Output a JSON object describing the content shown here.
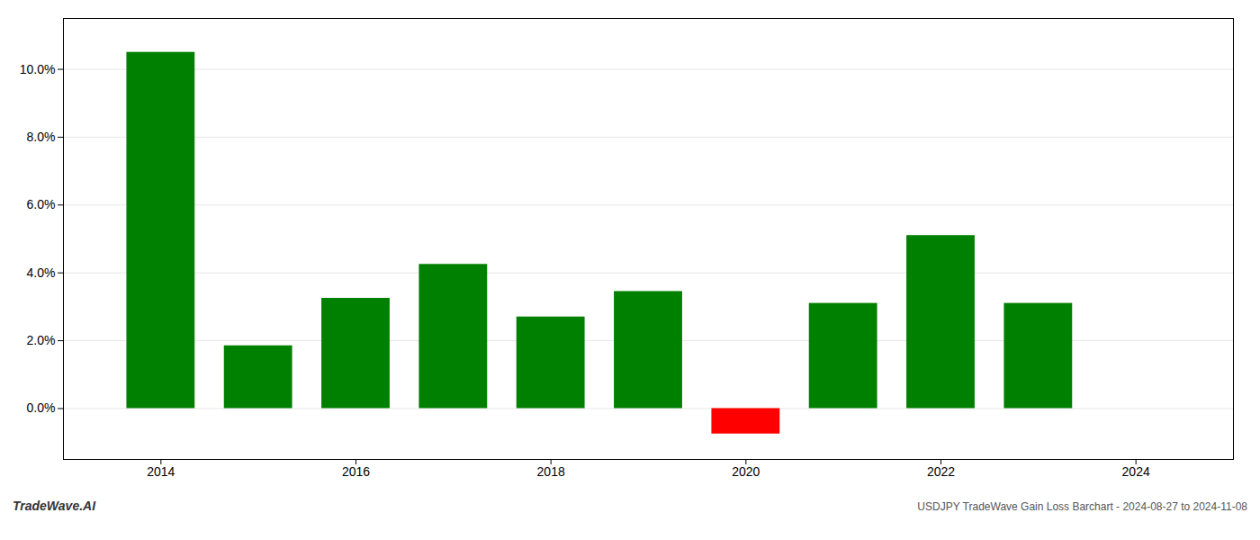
{
  "chart_data": {
    "type": "bar",
    "title": "USDJPY TradeWave Gain Loss Barchart - 2024-08-27 to 2024-11-08",
    "annotations": [
      "TradeWave.AI"
    ],
    "x": [
      2014,
      2015,
      2016,
      2017,
      2018,
      2019,
      2020,
      2021,
      2022,
      2023
    ],
    "values": [
      0.105,
      0.0185,
      0.0325,
      0.0425,
      0.027,
      0.0345,
      -0.0075,
      0.031,
      0.051,
      0.031
    ],
    "colors": [
      "#008000",
      "#008000",
      "#008000",
      "#008000",
      "#008000",
      "#008000",
      "#ff0000",
      "#008000",
      "#008000",
      "#008000"
    ],
    "xlim": [
      2013,
      2025
    ],
    "xticks": [
      2014,
      2016,
      2018,
      2020,
      2022,
      2024
    ],
    "ylim": [
      -0.015,
      0.115
    ],
    "yticks": [
      {
        "value": 0.0,
        "label": "0.0%"
      },
      {
        "value": 0.02,
        "label": "2.0%"
      },
      {
        "value": 0.04,
        "label": "4.0%"
      },
      {
        "value": 0.06,
        "label": "6.0%"
      },
      {
        "value": 0.08,
        "label": "8.0%"
      },
      {
        "value": 0.1,
        "label": "10.0%"
      }
    ],
    "grid": true
  }
}
